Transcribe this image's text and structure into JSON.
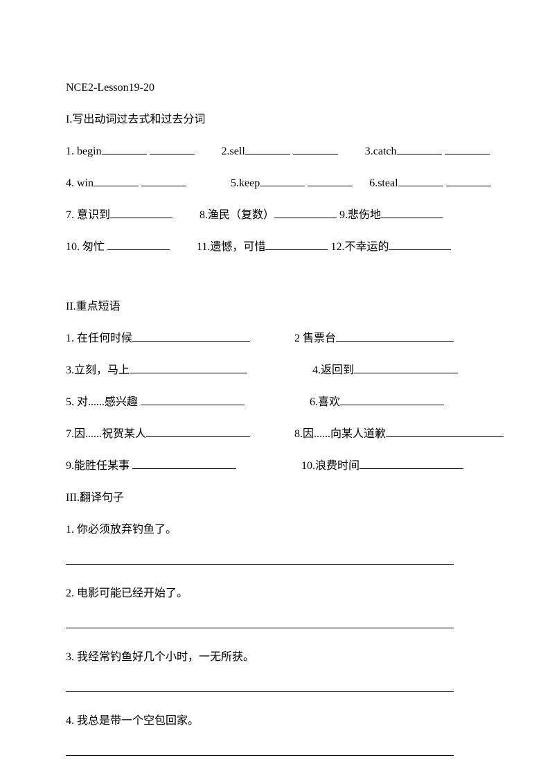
{
  "title": "NCE2-Lesson19-20",
  "section1": {
    "heading": "I.写出动词过去式和过去分词",
    "r1": {
      "a": "1. begin",
      "b": "2.sell",
      "c": "3.catch"
    },
    "r2": {
      "a": "4. win",
      "b": "5.keep",
      "c": "6.steal"
    },
    "r3": {
      "a": "7. 意识到",
      "b": "8.渔民（复数）",
      "c": "9.悲伤地"
    },
    "r4": {
      "a": "10. 匆忙",
      "b": "11.遗憾，可惜",
      "c": "12.不幸运的"
    }
  },
  "section2": {
    "heading": "II.重点短语",
    "r1": {
      "a": "1. 在任何时候",
      "b": "2 售票台"
    },
    "r2": {
      "a": "3.立刻，马上",
      "b": "4.返回到"
    },
    "r3": {
      "a": "5. 对......感兴趣",
      "b": "6.喜欢"
    },
    "r4": {
      "a": "7.因......祝贺某人",
      "b": "8.因......向某人道歉"
    },
    "r5": {
      "a": "9.能胜任某事",
      "b": "10.浪费时间"
    }
  },
  "section3": {
    "heading": "III.翻译句子",
    "q1": "1. 你必须放弃钓鱼了。",
    "q2": "2. 电影可能已经开始了。",
    "q3": "3. 我经常钓鱼好几个小时，一无所获。",
    "q4": "4. 我总是带一个空包回家。"
  }
}
